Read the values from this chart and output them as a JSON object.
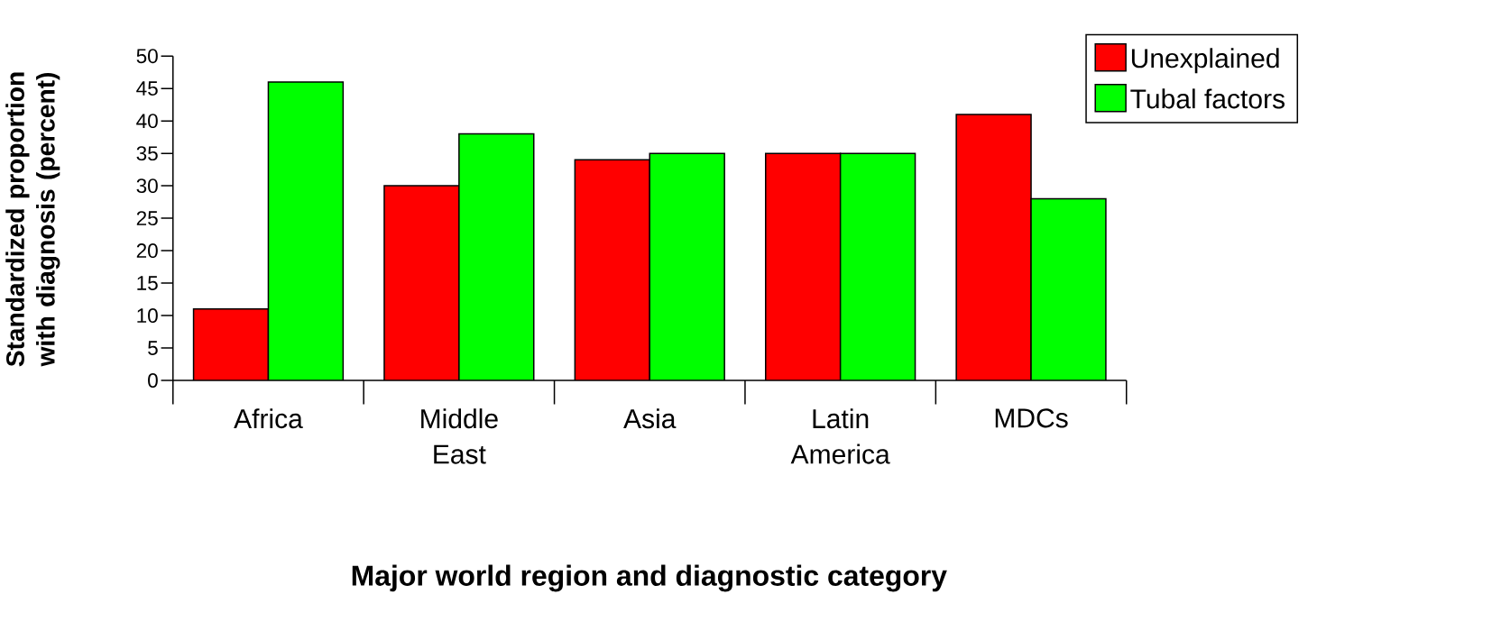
{
  "chart_data": {
    "type": "bar",
    "categories": [
      "Africa",
      "Middle East",
      "Asia",
      "Latin America",
      "MDCs"
    ],
    "series": [
      {
        "name": "Unexplained",
        "color": "#ff0000",
        "values": [
          11,
          30,
          34,
          35,
          41
        ]
      },
      {
        "name": "Tubal factors",
        "color": "#00ff00",
        "values": [
          46,
          38,
          35,
          35,
          28
        ]
      }
    ],
    "ylim": [
      0,
      50
    ],
    "yticks": [
      0,
      5,
      10,
      15,
      20,
      25,
      30,
      35,
      40,
      45,
      50
    ],
    "ylabel": "Standardized proportion with diagnosis (percent)",
    "xlabel": "Major world region and diagnostic category",
    "legend": "top right"
  }
}
